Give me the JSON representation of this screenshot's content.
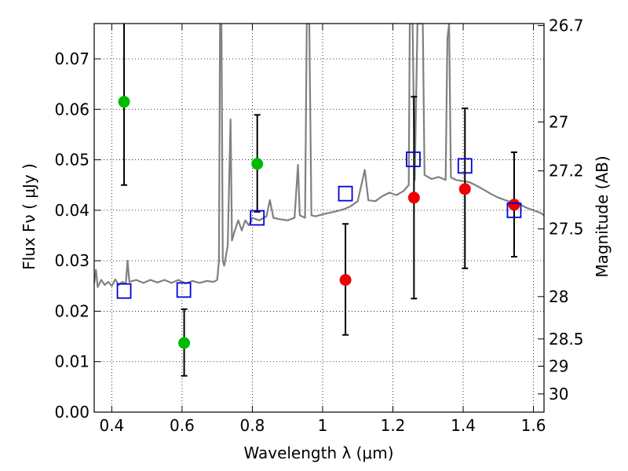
{
  "chart_data": {
    "type": "scatter",
    "xlabel": "Wavelength  λ (μm)",
    "ylabel": "Flux  Fν  ( μJy )",
    "y2label": "Magnitude (AB)",
    "xlim": [
      0.35,
      1.63
    ],
    "ylim": [
      0.0,
      0.077
    ],
    "grid": true,
    "x_ticks": [
      0.4,
      0.6,
      0.8,
      1.0,
      1.2,
      1.4,
      1.6
    ],
    "x_tick_labels": [
      "0.4",
      "0.6",
      "0.8",
      "1",
      "1.2",
      "1.4",
      "1.6"
    ],
    "y_ticks": [
      0.0,
      0.01,
      0.02,
      0.03,
      0.04,
      0.05,
      0.06,
      0.07
    ],
    "y_tick_labels": [
      "0.00",
      "0.01",
      "0.02",
      "0.03",
      "0.04",
      "0.05",
      "0.06",
      "0.07"
    ],
    "y2_ticks": [
      {
        "label": "26.7",
        "flux": 0.0766
      },
      {
        "label": "27",
        "flux": 0.0575
      },
      {
        "label": "27.2",
        "flux": 0.0478
      },
      {
        "label": "27.5",
        "flux": 0.0363
      },
      {
        "label": "28",
        "flux": 0.0229
      },
      {
        "label": "28.5",
        "flux": 0.0145
      },
      {
        "label": "29",
        "flux": 0.0091
      },
      {
        "label": "30",
        "flux": 0.0036
      }
    ],
    "colors": {
      "green": "#00bb00",
      "red": "#ee0000",
      "square": "#0000dd",
      "spectrum": "#808080",
      "errorbar": "#000000"
    },
    "series": [
      {
        "marker": "circle",
        "color": "green",
        "points": [
          {
            "x": 0.435,
            "y": 0.0615,
            "err_low": 0.045,
            "err_high": 0.077
          },
          {
            "x": 0.606,
            "y": 0.0137,
            "err_low": 0.0072,
            "err_high": 0.0204
          },
          {
            "x": 0.814,
            "y": 0.0492,
            "err_low": 0.0397,
            "err_high": 0.0589
          }
        ]
      },
      {
        "marker": "circle",
        "color": "red",
        "points": [
          {
            "x": 1.065,
            "y": 0.0262,
            "err_low": 0.0153,
            "err_high": 0.0373
          },
          {
            "x": 1.26,
            "y": 0.0425,
            "err_low": 0.0225,
            "err_high": 0.0625
          },
          {
            "x": 1.405,
            "y": 0.0442,
            "err_low": 0.0285,
            "err_high": 0.0602
          },
          {
            "x": 1.545,
            "y": 0.0411,
            "err_low": 0.0308,
            "err_high": 0.0515
          }
        ]
      },
      {
        "marker": "square",
        "color": "square",
        "points": [
          {
            "x": 0.435,
            "y": 0.024
          },
          {
            "x": 0.605,
            "y": 0.0242
          },
          {
            "x": 0.814,
            "y": 0.0385
          },
          {
            "x": 1.065,
            "y": 0.0433
          },
          {
            "x": 1.258,
            "y": 0.0501
          },
          {
            "x": 1.405,
            "y": 0.0488
          },
          {
            "x": 1.545,
            "y": 0.04
          }
        ]
      }
    ],
    "spectrum": {
      "color": "spectrum",
      "points": [
        [
          0.35,
          0.0255
        ],
        [
          0.355,
          0.0282
        ],
        [
          0.36,
          0.0248
        ],
        [
          0.37,
          0.0262
        ],
        [
          0.38,
          0.0252
        ],
        [
          0.39,
          0.0258
        ],
        [
          0.4,
          0.025
        ],
        [
          0.41,
          0.0263
        ],
        [
          0.42,
          0.0252
        ],
        [
          0.43,
          0.0258
        ],
        [
          0.44,
          0.0255
        ],
        [
          0.445,
          0.03
        ],
        [
          0.45,
          0.0258
        ],
        [
          0.47,
          0.0262
        ],
        [
          0.49,
          0.0256
        ],
        [
          0.51,
          0.0262
        ],
        [
          0.53,
          0.0257
        ],
        [
          0.55,
          0.0262
        ],
        [
          0.57,
          0.0256
        ],
        [
          0.59,
          0.0262
        ],
        [
          0.61,
          0.0255
        ],
        [
          0.63,
          0.026
        ],
        [
          0.65,
          0.0256
        ],
        [
          0.67,
          0.026
        ],
        [
          0.69,
          0.0258
        ],
        [
          0.7,
          0.0262
        ],
        [
          0.705,
          0.03
        ],
        [
          0.708,
          0.077
        ],
        [
          0.712,
          0.077
        ],
        [
          0.716,
          0.03
        ],
        [
          0.72,
          0.029
        ],
        [
          0.73,
          0.033
        ],
        [
          0.738,
          0.058
        ],
        [
          0.742,
          0.034
        ],
        [
          0.75,
          0.036
        ],
        [
          0.76,
          0.038
        ],
        [
          0.77,
          0.036
        ],
        [
          0.78,
          0.038
        ],
        [
          0.79,
          0.037
        ],
        [
          0.8,
          0.0385
        ],
        [
          0.82,
          0.038
        ],
        [
          0.84,
          0.0388
        ],
        [
          0.85,
          0.042
        ],
        [
          0.86,
          0.0385
        ],
        [
          0.88,
          0.0382
        ],
        [
          0.9,
          0.038
        ],
        [
          0.92,
          0.0385
        ],
        [
          0.93,
          0.049
        ],
        [
          0.935,
          0.039
        ],
        [
          0.95,
          0.0385
        ],
        [
          0.955,
          0.077
        ],
        [
          0.962,
          0.077
        ],
        [
          0.968,
          0.039
        ],
        [
          0.98,
          0.0388
        ],
        [
          1.0,
          0.0392
        ],
        [
          1.02,
          0.0395
        ],
        [
          1.04,
          0.0398
        ],
        [
          1.06,
          0.0402
        ],
        [
          1.08,
          0.0408
        ],
        [
          1.1,
          0.0418
        ],
        [
          1.12,
          0.048
        ],
        [
          1.13,
          0.042
        ],
        [
          1.15,
          0.0418
        ],
        [
          1.17,
          0.0428
        ],
        [
          1.19,
          0.0435
        ],
        [
          1.21,
          0.043
        ],
        [
          1.23,
          0.0438
        ],
        [
          1.245,
          0.045
        ],
        [
          1.248,
          0.077
        ],
        [
          1.256,
          0.077
        ],
        [
          1.262,
          0.046
        ],
        [
          1.27,
          0.077
        ],
        [
          1.285,
          0.077
        ],
        [
          1.29,
          0.047
        ],
        [
          1.31,
          0.0462
        ],
        [
          1.33,
          0.0466
        ],
        [
          1.35,
          0.046
        ],
        [
          1.355,
          0.074
        ],
        [
          1.36,
          0.077
        ],
        [
          1.365,
          0.0465
        ],
        [
          1.38,
          0.046
        ],
        [
          1.4,
          0.0458
        ],
        [
          1.42,
          0.0455
        ],
        [
          1.44,
          0.0448
        ],
        [
          1.46,
          0.044
        ],
        [
          1.48,
          0.0432
        ],
        [
          1.5,
          0.0425
        ],
        [
          1.52,
          0.042
        ],
        [
          1.54,
          0.0415
        ],
        [
          1.56,
          0.0412
        ],
        [
          1.58,
          0.0405
        ],
        [
          1.6,
          0.04
        ],
        [
          1.62,
          0.0395
        ],
        [
          1.63,
          0.039
        ]
      ]
    }
  }
}
